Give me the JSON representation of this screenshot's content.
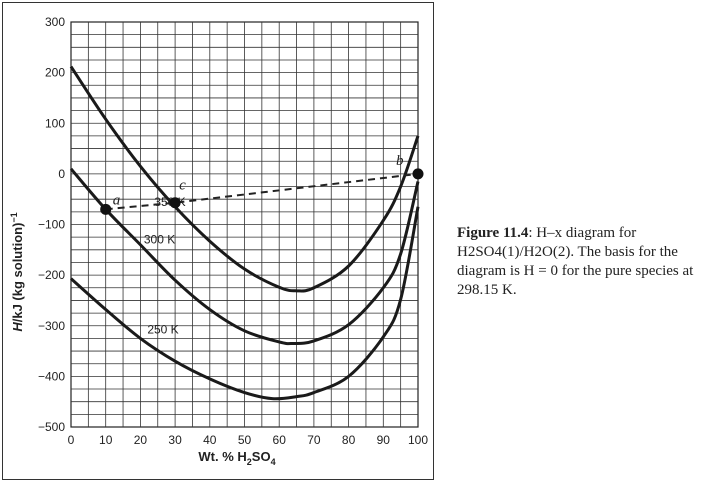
{
  "chart_data": {
    "type": "line",
    "title": "H–x diagram for H2SO4(1)/H2O(2)",
    "xlabel": "Wt. % H2SO4",
    "ylabel": "H/kJ (kg solution)−1",
    "xlim": [
      0,
      100
    ],
    "ylim": [
      -500,
      300
    ],
    "x_ticks": [
      0,
      10,
      20,
      30,
      40,
      50,
      60,
      70,
      80,
      90,
      100
    ],
    "y_ticks": [
      300,
      200,
      100,
      0,
      -100,
      -200,
      -300,
      -400,
      -500
    ],
    "grid": true,
    "series": [
      {
        "name": "350 K",
        "x": [
          0,
          10,
          20,
          30,
          40,
          50,
          60,
          65,
          70,
          80,
          90,
          95,
          100
        ],
        "y": [
          212,
          108,
          15,
          -65,
          -133,
          -188,
          -224,
          -231,
          -225,
          -182,
          -92,
          -25,
          75
        ]
      },
      {
        "name": "300 K",
        "x": [
          0,
          10,
          20,
          30,
          40,
          50,
          60,
          64,
          70,
          80,
          90,
          95,
          100
        ],
        "y": [
          10,
          -70,
          -140,
          -210,
          -268,
          -310,
          -332,
          -335,
          -330,
          -298,
          -225,
          -158,
          -15
        ]
      },
      {
        "name": "250 K",
        "x": [
          0,
          10,
          20,
          30,
          40,
          50,
          58,
          65,
          70,
          80,
          90,
          95,
          100
        ],
        "y": [
          -207,
          -268,
          -325,
          -370,
          -405,
          -432,
          -444,
          -440,
          -432,
          -400,
          -322,
          -248,
          -65
        ]
      },
      {
        "name": "mixing line a–c–b",
        "style": "dashed",
        "x": [
          10,
          30,
          100
        ],
        "y": [
          -70,
          -57,
          0
        ]
      }
    ],
    "points": [
      {
        "label": "a",
        "x": 10,
        "y": -70
      },
      {
        "label": "c",
        "x": 30,
        "y": -57
      },
      {
        "label": "b",
        "x": 100,
        "y": 0
      }
    ]
  },
  "caption": {
    "figure_number": "Figure 11.4",
    "text": ": H–x diagram for H2SO4(1)/H2O(2). The basis for the diagram is H = 0 for the pure species at 298.15 K."
  }
}
